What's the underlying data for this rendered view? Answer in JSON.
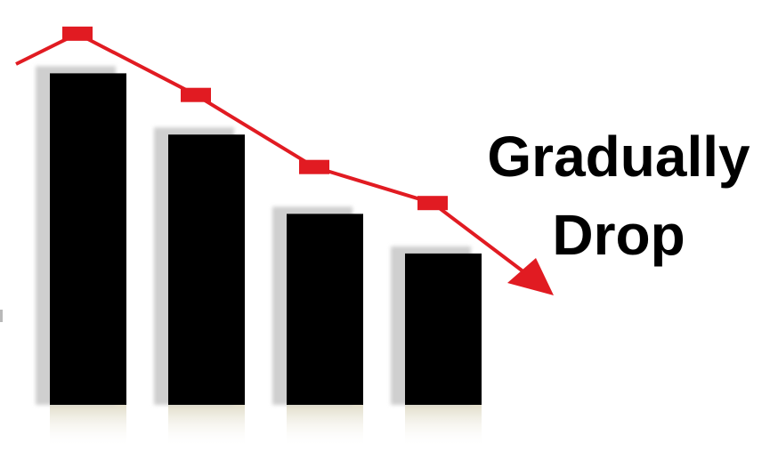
{
  "chart_data": {
    "type": "bar",
    "categories": [
      "",
      "",
      "",
      ""
    ],
    "values": [
      92,
      75,
      53,
      42
    ],
    "ylim": [
      0,
      100
    ],
    "bar_color": "#000000",
    "shadow_color": "#cfcfcf",
    "trend_line": {
      "color": "#e11b22",
      "points": [
        103,
        86,
        66,
        56
      ],
      "direction": "down",
      "markers": "square",
      "arrow_head": "triangle"
    },
    "grid": false,
    "legend": "none"
  },
  "caption": {
    "line1": "Gradually",
    "line2": "Drop"
  }
}
